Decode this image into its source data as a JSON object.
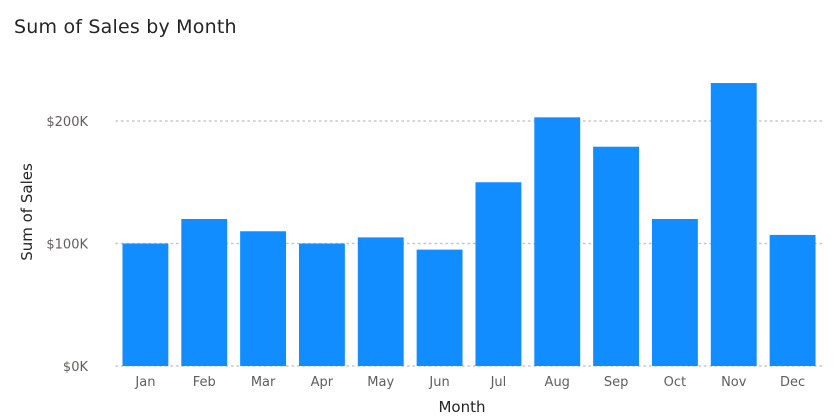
{
  "visual": {
    "title": "Sum of Sales by Month"
  },
  "chart_data": {
    "type": "bar",
    "title": "Sum of Sales by Month",
    "xlabel": "Month",
    "ylabel": "Sum of Sales",
    "categories": [
      "Jan",
      "Feb",
      "Mar",
      "Apr",
      "May",
      "Jun",
      "Jul",
      "Aug",
      "Sep",
      "Oct",
      "Nov",
      "Dec"
    ],
    "values": [
      100000,
      120000,
      110000,
      100000,
      105000,
      95000,
      150000,
      203000,
      179000,
      120000,
      231000,
      107000
    ],
    "ylim": [
      0,
      240000
    ],
    "yticks": [
      0,
      100000,
      200000
    ],
    "ytick_labels": [
      "$0K",
      "$100K",
      "$200K"
    ],
    "grid": "horizontal dotted",
    "legend": "none",
    "bar_color": "#118DFF",
    "grid_color": "#C8C6C4"
  }
}
